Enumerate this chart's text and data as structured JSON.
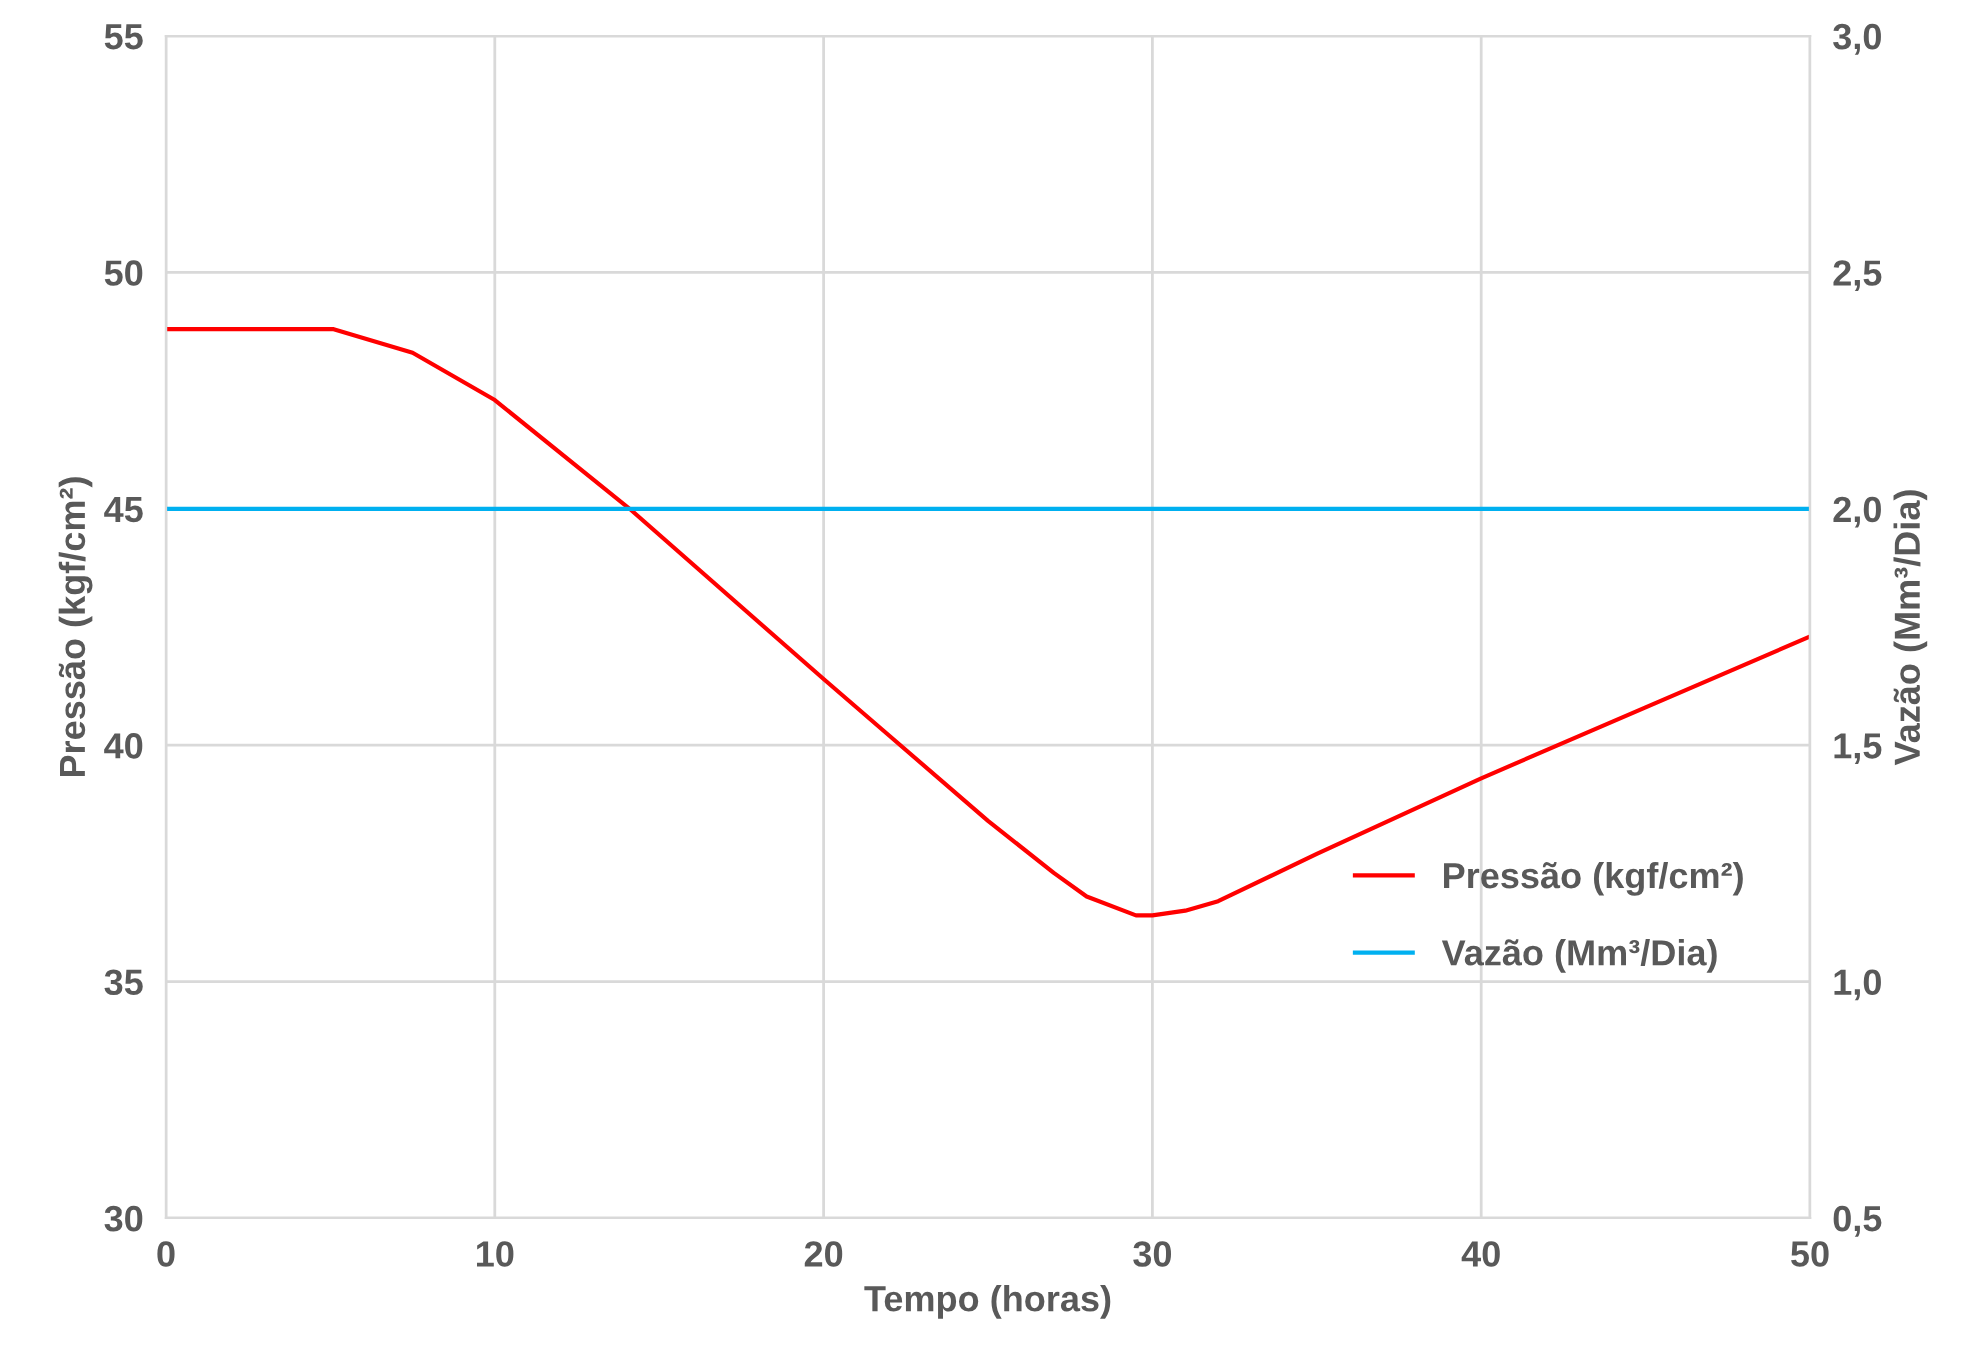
{
  "chart_data": {
    "type": "line",
    "xlabel": "Tempo (horas)",
    "ylabel": "Pressão (kgf/cm²)",
    "y2label": "Vazão (Mm³/Dia)",
    "series": [
      {
        "name": "Pressão (kgf/cm²)",
        "color": "#ff0000",
        "x": [
          0,
          5.1,
          7.5,
          10,
          14.1,
          20,
          22,
          25,
          27,
          28,
          29.5,
          30,
          31,
          32,
          35,
          40,
          45,
          50
        ],
        "values": [
          48.8,
          48.8,
          48.3,
          47.3,
          45.0,
          41.4,
          40.2,
          38.4,
          37.3,
          36.8,
          36.4,
          36.4,
          36.5,
          36.7,
          37.7,
          39.3,
          40.8,
          42.3
        ]
      },
      {
        "name": "Vazão (Mm³/Dia)",
        "color": "#00b0f0",
        "axis": "y2",
        "x": [
          0,
          50
        ],
        "values": [
          2.0,
          2.0
        ]
      }
    ],
    "xlim": [
      0,
      50
    ],
    "xticks": [
      0,
      10,
      20,
      30,
      40,
      50
    ],
    "ylim": [
      30,
      55
    ],
    "yticks": [
      30,
      35,
      40,
      45,
      50,
      55
    ],
    "y2lim": [
      0.5,
      3.0
    ],
    "y2ticks": [
      {
        "value": 0.5,
        "label": "0,5"
      },
      {
        "value": 1.0,
        "label": "1,0"
      },
      {
        "value": 1.5,
        "label": "1,5"
      },
      {
        "value": 2.0,
        "label": "2,0"
      },
      {
        "value": 2.5,
        "label": "2,5"
      },
      {
        "value": 3.0,
        "label": "3,0"
      }
    ],
    "grid": true,
    "legend": "bottom right",
    "marker": "none",
    "line_style": "solid"
  }
}
